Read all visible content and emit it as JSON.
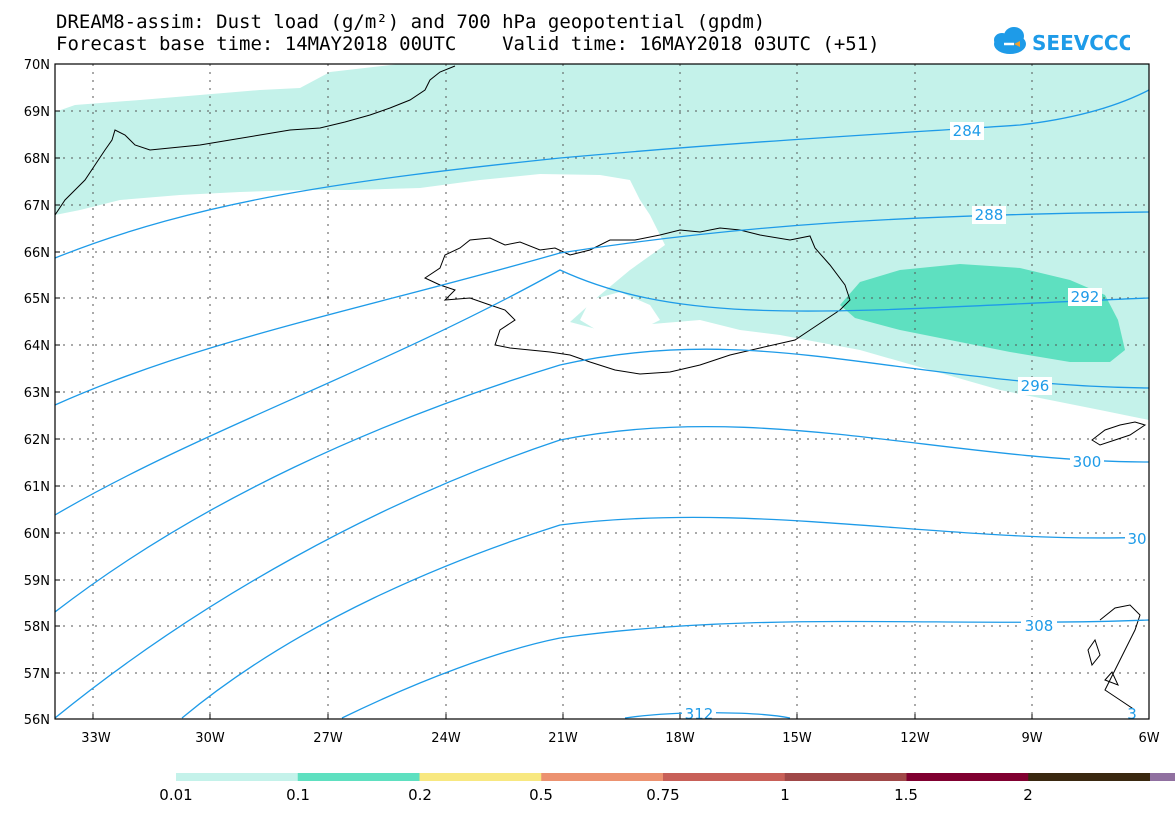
{
  "title_line1": "DREAM8-assim: Dust load (g/m²) and 700 hPa geopotential (gpdm)",
  "title_line2": "Forecast base time: 14MAY2018 00UTC    Valid time: 16MAY2018 03UTC (+51)",
  "logo_text": "SEEVCCC",
  "lat_labels": [
    "70N",
    "69N",
    "68N",
    "67N",
    "66N",
    "65N",
    "64N",
    "63N",
    "62N",
    "61N",
    "60N",
    "59N",
    "58N",
    "57N",
    "56N"
  ],
  "lon_labels": [
    "33W",
    "30W",
    "27W",
    "24W",
    "21W",
    "18W",
    "15W",
    "12W",
    "9W",
    "6W"
  ],
  "contour_labels": [
    "284",
    "288",
    "292",
    "296",
    "300",
    "30",
    "308",
    "312",
    "3"
  ],
  "colorbar": {
    "labels": [
      "0.01",
      "0.1",
      "0.2",
      "0.5",
      "0.75",
      "1",
      "1.5",
      "2"
    ],
    "colors": [
      "#c4f2ea",
      "#5ee0c0",
      "#f8e880",
      "#ec9270",
      "#c86058",
      "#a04848",
      "#800030",
      "#3a2810",
      "#9070a0"
    ]
  },
  "colors": {
    "contour": "#1e9be8",
    "dust_light": "#c4f2ea",
    "dust_medium": "#5ee0c0"
  }
}
